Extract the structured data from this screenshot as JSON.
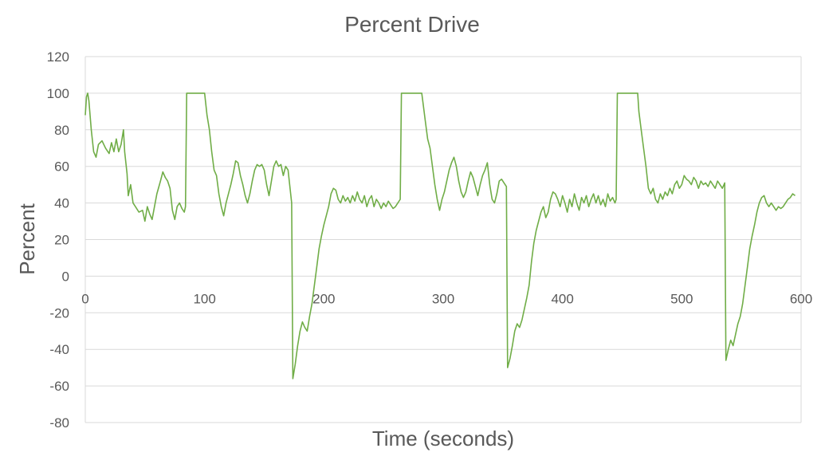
{
  "chart_data": {
    "type": "line",
    "title": "Percent Drive",
    "xlabel": "Time (seconds)",
    "ylabel": "Percent",
    "xlim": [
      0,
      600
    ],
    "ylim": [
      -80,
      120
    ],
    "x_ticks": [
      "0",
      "100",
      "200",
      "300",
      "400",
      "500",
      "600"
    ],
    "y_ticks": [
      "120",
      "100",
      "80",
      "60",
      "40",
      "20",
      "0",
      "-20",
      "-40",
      "-60",
      "-80"
    ],
    "grid": true,
    "legend": "none",
    "series": [
      {
        "color": "#70ad47",
        "points": [
          [
            0,
            88
          ],
          [
            1,
            98
          ],
          [
            2,
            100
          ],
          [
            3,
            96
          ],
          [
            5,
            80
          ],
          [
            7,
            68
          ],
          [
            9,
            65
          ],
          [
            11,
            72
          ],
          [
            14,
            74
          ],
          [
            17,
            70
          ],
          [
            20,
            67
          ],
          [
            22,
            73
          ],
          [
            24,
            68
          ],
          [
            26,
            75
          ],
          [
            28,
            68
          ],
          [
            30,
            72
          ],
          [
            32,
            80
          ],
          [
            33,
            68
          ],
          [
            35,
            56
          ],
          [
            36,
            44
          ],
          [
            38,
            50
          ],
          [
            40,
            40
          ],
          [
            42,
            38
          ],
          [
            45,
            35
          ],
          [
            48,
            36
          ],
          [
            50,
            30
          ],
          [
            52,
            38
          ],
          [
            54,
            34
          ],
          [
            56,
            31
          ],
          [
            58,
            38
          ],
          [
            60,
            45
          ],
          [
            63,
            52
          ],
          [
            65,
            57
          ],
          [
            67,
            54
          ],
          [
            69,
            52
          ],
          [
            71,
            48
          ],
          [
            73,
            36
          ],
          [
            75,
            31
          ],
          [
            77,
            38
          ],
          [
            79,
            40
          ],
          [
            81,
            37
          ],
          [
            83,
            35
          ],
          [
            84,
            38
          ],
          [
            85,
            100
          ],
          [
            100,
            100
          ],
          [
            102,
            88
          ],
          [
            104,
            80
          ],
          [
            106,
            68
          ],
          [
            108,
            58
          ],
          [
            110,
            55
          ],
          [
            112,
            45
          ],
          [
            114,
            38
          ],
          [
            116,
            33
          ],
          [
            118,
            40
          ],
          [
            120,
            45
          ],
          [
            122,
            50
          ],
          [
            124,
            56
          ],
          [
            126,
            63
          ],
          [
            128,
            62
          ],
          [
            130,
            55
          ],
          [
            132,
            50
          ],
          [
            134,
            44
          ],
          [
            136,
            40
          ],
          [
            138,
            45
          ],
          [
            140,
            52
          ],
          [
            142,
            58
          ],
          [
            144,
            61
          ],
          [
            146,
            60
          ],
          [
            148,
            61
          ],
          [
            150,
            58
          ],
          [
            152,
            50
          ],
          [
            154,
            44
          ],
          [
            156,
            52
          ],
          [
            158,
            60
          ],
          [
            160,
            63
          ],
          [
            162,
            60
          ],
          [
            164,
            61
          ],
          [
            166,
            55
          ],
          [
            168,
            60
          ],
          [
            170,
            58
          ],
          [
            172,
            46
          ],
          [
            173,
            40
          ],
          [
            174,
            -56
          ],
          [
            176,
            -48
          ],
          [
            178,
            -38
          ],
          [
            180,
            -30
          ],
          [
            182,
            -25
          ],
          [
            184,
            -28
          ],
          [
            186,
            -30
          ],
          [
            188,
            -22
          ],
          [
            190,
            -15
          ],
          [
            192,
            -5
          ],
          [
            194,
            5
          ],
          [
            196,
            15
          ],
          [
            198,
            22
          ],
          [
            200,
            28
          ],
          [
            202,
            33
          ],
          [
            204,
            38
          ],
          [
            206,
            45
          ],
          [
            208,
            48
          ],
          [
            210,
            47
          ],
          [
            212,
            42
          ],
          [
            214,
            40
          ],
          [
            216,
            44
          ],
          [
            218,
            41
          ],
          [
            220,
            43
          ],
          [
            222,
            40
          ],
          [
            224,
            44
          ],
          [
            226,
            41
          ],
          [
            228,
            46
          ],
          [
            230,
            42
          ],
          [
            232,
            40
          ],
          [
            234,
            44
          ],
          [
            236,
            38
          ],
          [
            238,
            42
          ],
          [
            240,
            44
          ],
          [
            242,
            38
          ],
          [
            244,
            42
          ],
          [
            246,
            40
          ],
          [
            248,
            37
          ],
          [
            250,
            40
          ],
          [
            252,
            38
          ],
          [
            254,
            41
          ],
          [
            256,
            39
          ],
          [
            258,
            37
          ],
          [
            260,
            38
          ],
          [
            262,
            40
          ],
          [
            264,
            42
          ],
          [
            265,
            100
          ],
          [
            282,
            100
          ],
          [
            283,
            95
          ],
          [
            285,
            85
          ],
          [
            287,
            75
          ],
          [
            289,
            70
          ],
          [
            291,
            60
          ],
          [
            293,
            50
          ],
          [
            295,
            42
          ],
          [
            297,
            36
          ],
          [
            299,
            42
          ],
          [
            301,
            46
          ],
          [
            303,
            52
          ],
          [
            305,
            58
          ],
          [
            307,
            62
          ],
          [
            309,
            65
          ],
          [
            311,
            60
          ],
          [
            313,
            52
          ],
          [
            315,
            46
          ],
          [
            317,
            43
          ],
          [
            319,
            46
          ],
          [
            321,
            52
          ],
          [
            323,
            57
          ],
          [
            325,
            54
          ],
          [
            327,
            49
          ],
          [
            329,
            44
          ],
          [
            331,
            50
          ],
          [
            333,
            55
          ],
          [
            335,
            58
          ],
          [
            337,
            62
          ],
          [
            339,
            50
          ],
          [
            341,
            42
          ],
          [
            343,
            40
          ],
          [
            345,
            45
          ],
          [
            347,
            52
          ],
          [
            349,
            53
          ],
          [
            351,
            51
          ],
          [
            353,
            49
          ],
          [
            354,
            -50
          ],
          [
            356,
            -45
          ],
          [
            358,
            -38
          ],
          [
            360,
            -30
          ],
          [
            362,
            -26
          ],
          [
            364,
            -28
          ],
          [
            366,
            -24
          ],
          [
            368,
            -18
          ],
          [
            370,
            -12
          ],
          [
            372,
            -5
          ],
          [
            374,
            8
          ],
          [
            376,
            18
          ],
          [
            378,
            25
          ],
          [
            380,
            30
          ],
          [
            382,
            35
          ],
          [
            384,
            38
          ],
          [
            386,
            32
          ],
          [
            388,
            35
          ],
          [
            390,
            42
          ],
          [
            392,
            46
          ],
          [
            394,
            45
          ],
          [
            396,
            42
          ],
          [
            398,
            38
          ],
          [
            400,
            44
          ],
          [
            402,
            40
          ],
          [
            404,
            35
          ],
          [
            406,
            42
          ],
          [
            408,
            38
          ],
          [
            410,
            45
          ],
          [
            412,
            40
          ],
          [
            414,
            36
          ],
          [
            416,
            43
          ],
          [
            418,
            40
          ],
          [
            420,
            44
          ],
          [
            422,
            38
          ],
          [
            424,
            42
          ],
          [
            426,
            45
          ],
          [
            428,
            40
          ],
          [
            430,
            44
          ],
          [
            432,
            39
          ],
          [
            434,
            42
          ],
          [
            436,
            38
          ],
          [
            438,
            45
          ],
          [
            440,
            41
          ],
          [
            442,
            43
          ],
          [
            444,
            40
          ],
          [
            445,
            42
          ],
          [
            446,
            100
          ],
          [
            463,
            100
          ],
          [
            464,
            90
          ],
          [
            466,
            80
          ],
          [
            468,
            70
          ],
          [
            470,
            60
          ],
          [
            472,
            48
          ],
          [
            474,
            45
          ],
          [
            476,
            48
          ],
          [
            478,
            42
          ],
          [
            480,
            40
          ],
          [
            482,
            45
          ],
          [
            484,
            42
          ],
          [
            486,
            46
          ],
          [
            488,
            44
          ],
          [
            490,
            48
          ],
          [
            492,
            45
          ],
          [
            494,
            50
          ],
          [
            496,
            52
          ],
          [
            498,
            48
          ],
          [
            500,
            50
          ],
          [
            502,
            55
          ],
          [
            504,
            53
          ],
          [
            506,
            52
          ],
          [
            508,
            50
          ],
          [
            510,
            54
          ],
          [
            512,
            52
          ],
          [
            514,
            48
          ],
          [
            516,
            52
          ],
          [
            518,
            50
          ],
          [
            520,
            51
          ],
          [
            522,
            49
          ],
          [
            524,
            52
          ],
          [
            526,
            50
          ],
          [
            528,
            48
          ],
          [
            530,
            52
          ],
          [
            532,
            50
          ],
          [
            534,
            48
          ],
          [
            536,
            51
          ],
          [
            537,
            -46
          ],
          [
            539,
            -40
          ],
          [
            541,
            -35
          ],
          [
            543,
            -38
          ],
          [
            545,
            -32
          ],
          [
            547,
            -26
          ],
          [
            549,
            -22
          ],
          [
            551,
            -15
          ],
          [
            553,
            -5
          ],
          [
            555,
            5
          ],
          [
            557,
            15
          ],
          [
            559,
            22
          ],
          [
            561,
            28
          ],
          [
            563,
            35
          ],
          [
            565,
            40
          ],
          [
            567,
            43
          ],
          [
            569,
            44
          ],
          [
            571,
            40
          ],
          [
            573,
            38
          ],
          [
            575,
            40
          ],
          [
            577,
            38
          ],
          [
            579,
            36
          ],
          [
            581,
            38
          ],
          [
            583,
            37
          ],
          [
            585,
            38
          ],
          [
            587,
            40
          ],
          [
            589,
            42
          ],
          [
            591,
            43
          ],
          [
            593,
            45
          ],
          [
            595,
            44
          ]
        ]
      }
    ]
  }
}
